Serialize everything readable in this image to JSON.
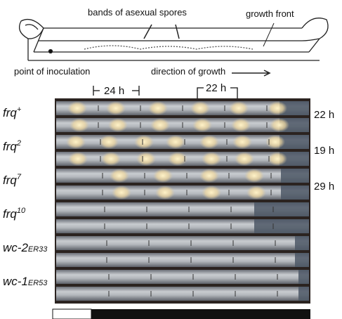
{
  "schematic": {
    "labels": {
      "bands": "bands of asexual spores",
      "front": "growth front",
      "inoculation": "point of inoculation",
      "direction": "direction of growth"
    }
  },
  "scale": {
    "left": "24 h",
    "right": "22 h"
  },
  "strains": [
    {
      "gene": "frq",
      "allele": "+",
      "period": "22 h"
    },
    {
      "gene": "frq",
      "allele": "2",
      "period": "19 h"
    },
    {
      "gene": "frq",
      "allele": "7",
      "period": "29 h"
    },
    {
      "gene": "frq",
      "allele": "10"
    },
    {
      "gene": "wc-2",
      "allele": "ER33"
    },
    {
      "gene": "wc-1",
      "allele": "ER53"
    }
  ]
}
